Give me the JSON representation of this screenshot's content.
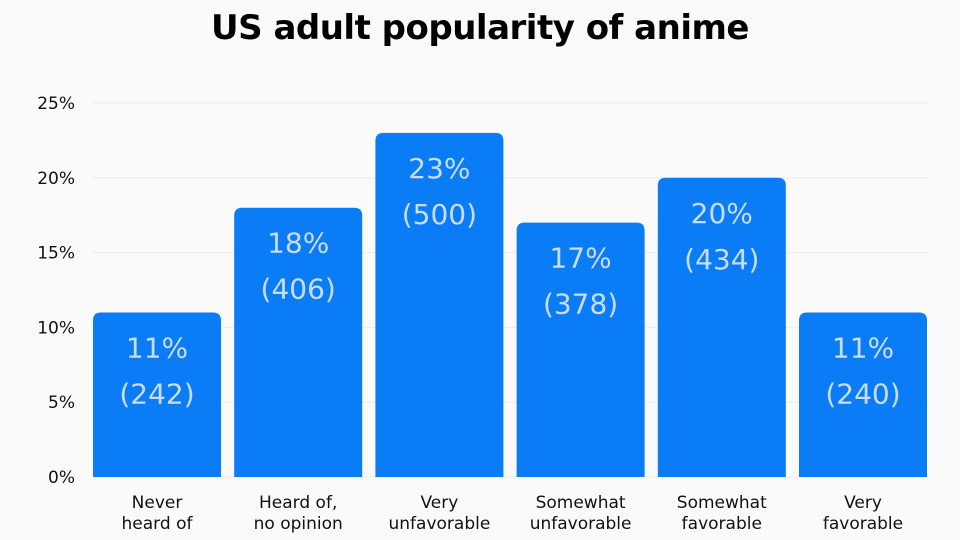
{
  "chart_data": {
    "type": "bar",
    "title": "US adult popularity of anime",
    "categories": [
      [
        "Never",
        "heard of"
      ],
      [
        "Heard of,",
        "no opinion"
      ],
      [
        "Very",
        "unfavorable"
      ],
      [
        "Somewhat",
        "unfavorable"
      ],
      [
        "Somewhat",
        "favorable"
      ],
      [
        "Very",
        "favorable"
      ]
    ],
    "values": [
      11,
      18,
      23,
      17,
      20,
      11
    ],
    "counts": [
      "(242)",
      "(406)",
      "(500)",
      "(378)",
      "(434)",
      "(240)"
    ],
    "value_labels": [
      "11%",
      "18%",
      "23%",
      "17%",
      "20%",
      "11%"
    ],
    "ylim": [
      0,
      25
    ],
    "yticks": [
      0,
      5,
      10,
      15,
      20,
      25
    ],
    "ytick_labels": [
      "0%",
      "5%",
      "10%",
      "15%",
      "20%",
      "25%"
    ],
    "grid": true,
    "bar_color": "#0a7cf6",
    "label_color": "#c9ddf7",
    "background": "#fafafa"
  }
}
